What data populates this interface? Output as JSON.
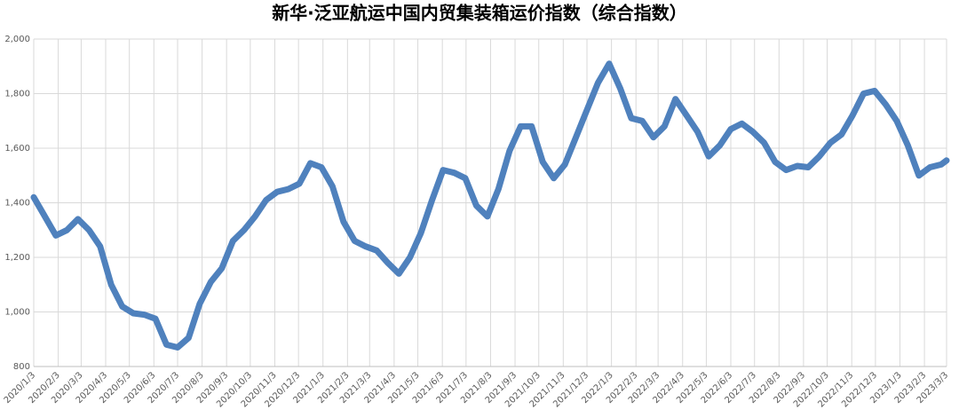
{
  "chart_data": {
    "type": "line",
    "title": "新华·泛亚航运中国内贸集装箱运价指数（综合指数）",
    "x": [
      "2020/1/3",
      "2020/1/17",
      "2020/1/31",
      "2020/2/14",
      "2020/2/28",
      "2020/3/13",
      "2020/3/27",
      "2020/4/10",
      "2020/4/24",
      "2020/5/8",
      "2020/5/22",
      "2020/6/5",
      "2020/6/19",
      "2020/7/3",
      "2020/7/17",
      "2020/7/31",
      "2020/8/14",
      "2020/8/28",
      "2020/9/11",
      "2020/9/25",
      "2020/10/9",
      "2020/10/23",
      "2020/11/6",
      "2020/11/20",
      "2020/12/4",
      "2020/12/18",
      "2021/1/1",
      "2021/1/15",
      "2021/1/29",
      "2021/2/12",
      "2021/2/26",
      "2021/3/12",
      "2021/3/26",
      "2021/4/9",
      "2021/4/23",
      "2021/5/7",
      "2021/5/21",
      "2021/6/4",
      "2021/6/18",
      "2021/7/2",
      "2021/7/16",
      "2021/7/30",
      "2021/8/13",
      "2021/8/27",
      "2021/9/10",
      "2021/9/24",
      "2021/10/8",
      "2021/10/22",
      "2021/11/5",
      "2021/11/19",
      "2021/12/3",
      "2021/12/17",
      "2021/12/31",
      "2022/1/14",
      "2022/1/28",
      "2022/2/11",
      "2022/2/25",
      "2022/3/11",
      "2022/3/25",
      "2022/4/8",
      "2022/4/22",
      "2022/5/6",
      "2022/5/20",
      "2022/6/3",
      "2022/6/17",
      "2022/7/1",
      "2022/7/15",
      "2022/7/29",
      "2022/8/12",
      "2022/8/26",
      "2022/9/9",
      "2022/9/23",
      "2022/10/7",
      "2022/10/21",
      "2022/11/4",
      "2022/11/18",
      "2022/12/2",
      "2022/12/16",
      "2022/12/30",
      "2023/1/13",
      "2023/1/27",
      "2023/2/10",
      "2023/2/24",
      "2023/3/3"
    ],
    "series": [
      {
        "name": "综合指数",
        "color": "#4f81bd",
        "values": [
          1420,
          1350,
          1280,
          1300,
          1340,
          1300,
          1240,
          1100,
          1020,
          995,
          990,
          975,
          880,
          870,
          905,
          1030,
          1110,
          1160,
          1260,
          1300,
          1350,
          1410,
          1440,
          1450,
          1470,
          1545,
          1530,
          1460,
          1330,
          1260,
          1240,
          1225,
          1180,
          1140,
          1200,
          1290,
          1410,
          1520,
          1510,
          1490,
          1390,
          1350,
          1450,
          1590,
          1680,
          1680,
          1550,
          1490,
          1540,
          1640,
          1740,
          1840,
          1910,
          1820,
          1710,
          1700,
          1640,
          1680,
          1780,
          1720,
          1660,
          1570,
          1610,
          1670,
          1690,
          1660,
          1620,
          1550,
          1520,
          1535,
          1530,
          1570,
          1620,
          1650,
          1720,
          1800,
          1810,
          1760,
          1700,
          1610,
          1500,
          1530,
          1540,
          1555
        ]
      }
    ],
    "xlim": [
      "2020/1/3",
      "2023/3/3"
    ],
    "xticks": [
      "2020/1/3",
      "2020/2/3",
      "2020/3/3",
      "2020/4/3",
      "2020/5/3",
      "2020/6/3",
      "2020/7/3",
      "2020/8/3",
      "2020/9/3",
      "2020/10/3",
      "2020/11/3",
      "2020/12/3",
      "2021/1/3",
      "2021/2/3",
      "2021/3/3",
      "2021/4/3",
      "2021/5/3",
      "2021/6/3",
      "2021/7/3",
      "2021/8/3",
      "2021/9/3",
      "2021/10/3",
      "2021/11/3",
      "2021/12/3",
      "2022/1/3",
      "2022/2/3",
      "2022/3/3",
      "2022/4/3",
      "2022/5/3",
      "2022/6/3",
      "2022/7/3",
      "2022/8/3",
      "2022/9/3",
      "2022/10/3",
      "2022/11/3",
      "2022/12/3",
      "2023/1/3",
      "2023/2/3",
      "2023/3/3"
    ],
    "ylim": [
      800,
      2000
    ],
    "yticks": [
      800,
      {
        "value": 1000,
        "label": "1,000"
      },
      {
        "value": 1200,
        "label": "1,200"
      },
      {
        "value": 1400,
        "label": "1,400"
      },
      {
        "value": 1600,
        "label": "1,600"
      },
      {
        "value": 1800,
        "label": "1,800"
      },
      {
        "value": 2000,
        "label": "2,000"
      }
    ],
    "grid": true
  }
}
